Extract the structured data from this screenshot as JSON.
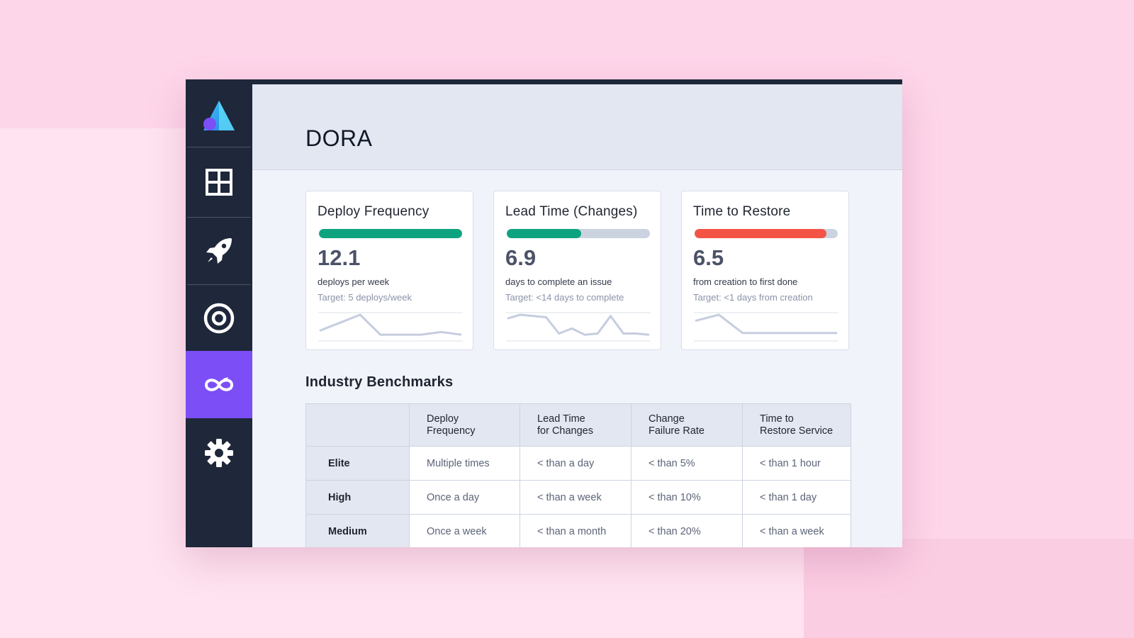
{
  "app": {
    "title": "DORA",
    "brand_logo": "triangle-logo"
  },
  "sidebar": {
    "items": [
      {
        "icon": "grid-icon",
        "active": false
      },
      {
        "icon": "rocket-icon",
        "active": false
      },
      {
        "icon": "target-icon",
        "active": false
      },
      {
        "icon": "loop-icon",
        "active": true
      },
      {
        "icon": "gear-icon",
        "active": false
      }
    ],
    "active_color": "#7c4ef6"
  },
  "metrics": [
    {
      "title": "Deploy Frequency",
      "value": "12.1",
      "description": "deploys per week",
      "target": "Target: 5 deploys/week",
      "progress": 1.0,
      "bar_color": "#0ea37f",
      "trend": [
        2,
        5,
        8,
        0.5,
        0.5,
        0.5,
        1.5,
        0.5
      ]
    },
    {
      "title": "Lead Time (Changes)",
      "value": "6.9",
      "description": "days to complete an issue",
      "target": "Target: <14 days to complete",
      "progress": 0.52,
      "bar_color": "#0ea37f",
      "trend": [
        7,
        8.5,
        8,
        7.5,
        1,
        3,
        0.5,
        1,
        8,
        1,
        1,
        0.5
      ]
    },
    {
      "title": "Time to Restore",
      "value": "6.5",
      "description": "from creation to first done",
      "target": "Target: <1 days from creation",
      "progress": 0.92,
      "bar_color": "#f45445",
      "trend": [
        5,
        7,
        1,
        1,
        1,
        1,
        1
      ]
    }
  ],
  "benchmarks": {
    "title": "Industry Benchmarks",
    "columns": [
      "",
      "Deploy\nFrequency",
      "Lead Time\nfor Changes",
      "Change\nFailure Rate",
      "Time to\nRestore Service"
    ],
    "rows": [
      {
        "tier": "Elite",
        "cells": [
          "Multiple times",
          "< than a day",
          "< than 5%",
          "< than 1 hour"
        ]
      },
      {
        "tier": "High",
        "cells": [
          "Once a day",
          "< than a week",
          "< than 10%",
          "< than 1 day"
        ]
      },
      {
        "tier": "Medium",
        "cells": [
          "Once a week",
          "< than a month",
          "< than 20%",
          "< than a week"
        ]
      }
    ]
  }
}
